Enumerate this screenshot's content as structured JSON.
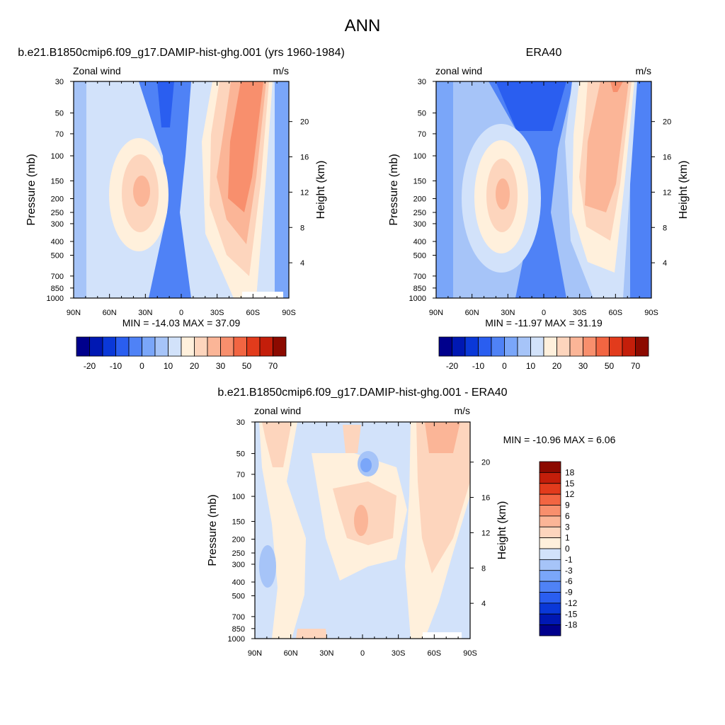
{
  "figure": {
    "title": "ANN"
  },
  "pressure_ticks": [
    30,
    50,
    70,
    100,
    150,
    200,
    250,
    300,
    400,
    500,
    700,
    850,
    1000
  ],
  "height_ticks_km": [
    4,
    8,
    12,
    16,
    20
  ],
  "lat_labels": [
    "90N",
    "60N",
    "30N",
    "0",
    "30S",
    "60S",
    "90S"
  ],
  "ytitle": "Pressure (mb)",
  "y2title": "Height (km)",
  "palette_colors": [
    "#00008c",
    "#0018b3",
    "#0a38d8",
    "#2a5ef0",
    "#4f82f6",
    "#7aa6f9",
    "#a6c4f8",
    "#d2e2fa",
    "#fff0dc",
    "#fdd5bd",
    "#fbb597",
    "#f88f6d",
    "#f26542",
    "#e23b1c",
    "#c41e0a",
    "#8c0a00"
  ],
  "chart_data": [
    {
      "type": "heatmap",
      "title": "b.e21.B1850cmip6.f09_g17.DAMIP-hist-ghg.001 (yrs 1960-1984)",
      "left_label": "Zonal wind",
      "right_label": "m/s",
      "stats": "MIN = -14.03  MAX =  37.09",
      "colorbar_labels": [
        "-20",
        "-10",
        "0",
        "10",
        "20",
        "30",
        "50",
        "70"
      ],
      "contour_levels": [
        -25,
        -20,
        -15,
        -10,
        -5,
        0,
        5,
        10,
        15,
        20,
        25,
        30,
        40,
        50,
        60,
        70
      ],
      "x_range": [
        "90N",
        "90S"
      ],
      "y_range_mb": [
        1000,
        30
      ],
      "min": -14.03,
      "max": 37.09
    },
    {
      "type": "heatmap",
      "title": "ERA40",
      "left_label": "zonal wind",
      "right_label": "m/s",
      "stats": "MIN = -11.97  MAX =  31.19",
      "colorbar_labels": [
        "-20",
        "-10",
        "0",
        "10",
        "20",
        "30",
        "50",
        "70"
      ],
      "contour_levels": [
        -25,
        -20,
        -15,
        -10,
        -5,
        0,
        5,
        10,
        15,
        20,
        25,
        30,
        40,
        50,
        60,
        70
      ],
      "x_range": [
        "90N",
        "90S"
      ],
      "y_range_mb": [
        1000,
        30
      ],
      "min": -11.97,
      "max": 31.19
    },
    {
      "type": "heatmap",
      "title": "b.e21.B1850cmip6.f09_g17.DAMIP-hist-ghg.001 - ERA40",
      "left_label": "zonal wind",
      "right_label": "m/s",
      "stats": "MIN = -10.96  MAX =   6.06",
      "colorbar_labels": [
        "18",
        "15",
        "12",
        "9",
        "6",
        "3",
        "1",
        "0",
        "-1",
        "-3",
        "-6",
        "-9",
        "-12",
        "-15",
        "-18"
      ],
      "contour_levels": [
        -18,
        -15,
        -12,
        -9,
        -6,
        -3,
        -1,
        0,
        1,
        3,
        6,
        9,
        12,
        15,
        18
      ],
      "x_range": [
        "90N",
        "90S"
      ],
      "y_range_mb": [
        1000,
        30
      ],
      "min": -10.96,
      "max": 6.06
    }
  ]
}
